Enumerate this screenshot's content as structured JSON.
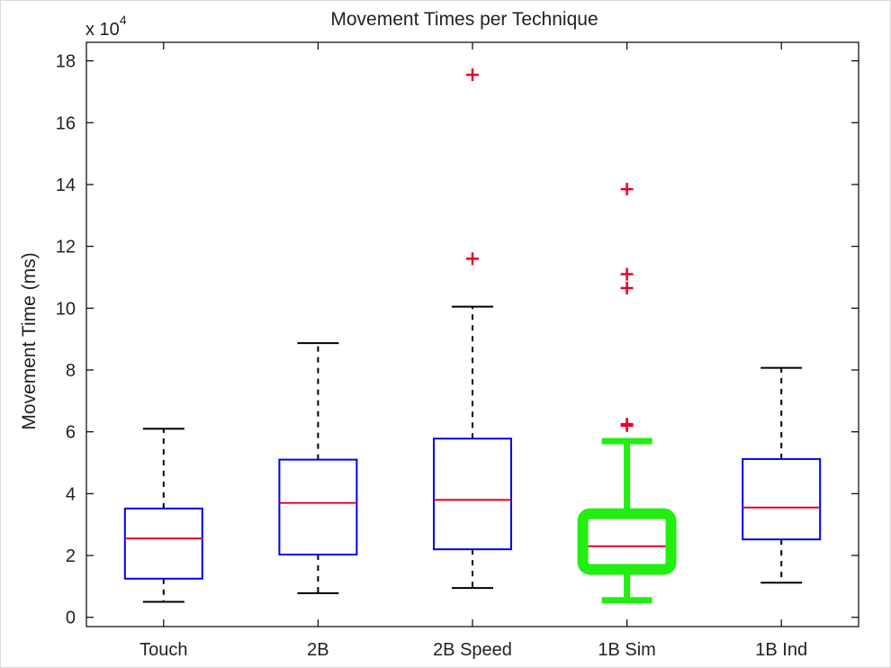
{
  "chart_data": {
    "type": "box",
    "title": "Movement Times per Technique",
    "xlabel": "",
    "ylabel": "Movement Time (ms)",
    "y_multiplier_base": "x 10",
    "y_multiplier_exponent": "4",
    "ylim": [
      -0.3,
      18.6
    ],
    "yticks": [
      0,
      2,
      4,
      6,
      8,
      10,
      12,
      14,
      16,
      18
    ],
    "ytick_labels": [
      "0",
      "2",
      "4",
      "6",
      "8",
      "10",
      "12",
      "14",
      "16",
      "18"
    ],
    "grid": false,
    "categories": [
      "Touch",
      "2B",
      "2B Speed",
      "1B Sim",
      "1B Ind"
    ],
    "boxes": [
      {
        "category": "Touch",
        "whisker_low": 0.5,
        "q1": 1.25,
        "median": 2.55,
        "q3": 3.52,
        "whisker_high": 6.1,
        "outliers": [],
        "highlight": false
      },
      {
        "category": "2B",
        "whisker_low": 0.78,
        "q1": 2.03,
        "median": 3.7,
        "q3": 5.1,
        "whisker_high": 8.87,
        "outliers": [],
        "highlight": false
      },
      {
        "category": "2B Speed",
        "whisker_low": 0.95,
        "q1": 2.2,
        "median": 3.8,
        "q3": 5.78,
        "whisker_high": 10.05,
        "outliers": [
          11.6,
          17.55
        ],
        "highlight": false
      },
      {
        "category": "1B Sim",
        "whisker_low": 0.55,
        "q1": 1.55,
        "median": 2.3,
        "q3": 3.35,
        "whisker_high": 5.7,
        "outliers": [
          6.2,
          6.25,
          10.65,
          11.1,
          13.85
        ],
        "highlight": true
      },
      {
        "category": "1B Ind",
        "whisker_low": 1.12,
        "q1": 2.52,
        "median": 3.55,
        "q3": 5.12,
        "whisker_high": 8.07,
        "outliers": [],
        "highlight": false
      }
    ],
    "colors": {
      "box": "#0000ee",
      "median": "#e8002a",
      "whisker": "#000000",
      "outlier": "#e8002a",
      "highlight": "#22ee11",
      "axes": "#000000"
    }
  }
}
